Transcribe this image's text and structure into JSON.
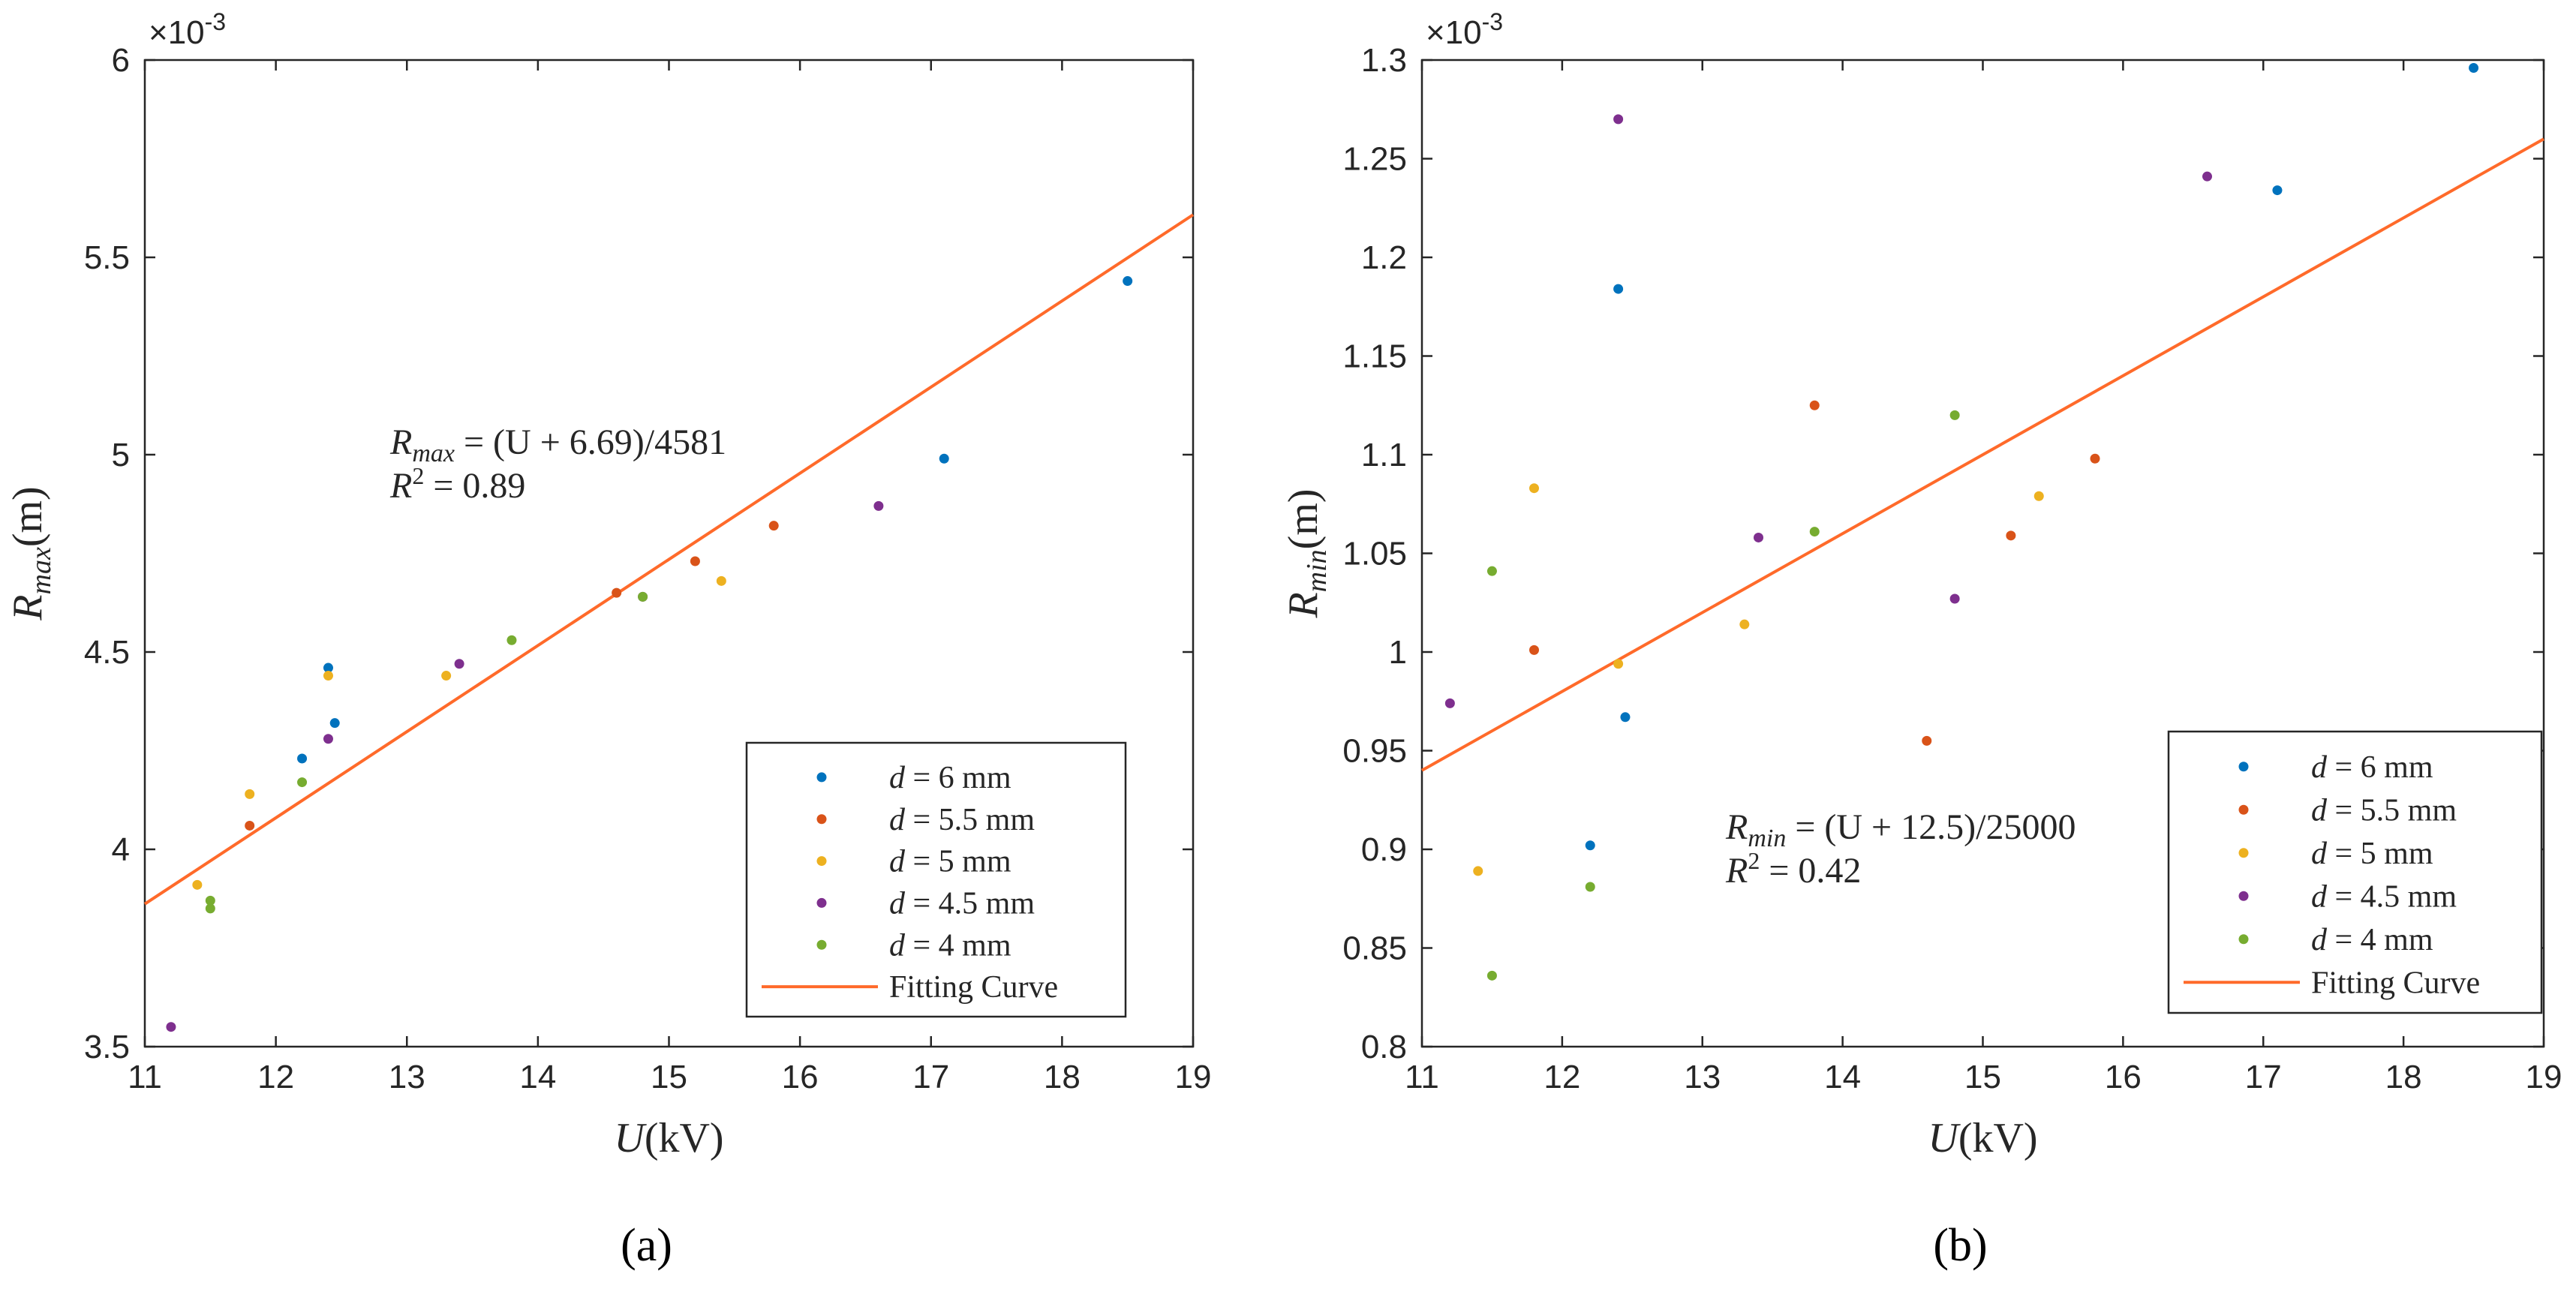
{
  "chart_data": [
    {
      "type": "scatter",
      "panel": "a",
      "caption": "(a)",
      "xlabel": "U(kV)",
      "xlabel_var": "U",
      "xlabel_unit": "(kV)",
      "ylabel": "R_max (m)",
      "ylabel_var": "R",
      "ylabel_sub": "max",
      "ylabel_unit": "(m)",
      "xlim": [
        11,
        19
      ],
      "ylim": [
        3.5,
        6
      ],
      "xticks": [
        11,
        12,
        13,
        14,
        15,
        16,
        17,
        18,
        19
      ],
      "xtick_labels": [
        "11",
        "12",
        "13",
        "14",
        "15",
        "16",
        "17",
        "18",
        "19"
      ],
      "yticks": [
        3.5,
        4,
        4.5,
        5,
        5.5,
        6
      ],
      "ytick_labels": [
        "3.5",
        "4",
        "4.5",
        "5",
        "5.5",
        "6"
      ],
      "exponent_label": "×10",
      "exponent_power": "-3",
      "equation_lines": [
        "R_max = (U + 6.69)/4581",
        "R^2 = 0.89"
      ],
      "equation_parts": {
        "var": "R",
        "sub": "max",
        "rhs": " = (U + 6.69)/4581",
        "r2_base": "R",
        "r2_sup": "2",
        "r2_rhs": " = 0.89"
      },
      "fit": {
        "slope": 0.21829,
        "intercept": 1.46037,
        "x": [
          11,
          19
        ]
      },
      "series": [
        {
          "name": "d = 6 mm",
          "label_var": "d",
          "label_rest": " = 6 mm",
          "color": "#0072BD",
          "x": [
            12.2,
            12.4,
            12.45,
            17.1,
            18.5
          ],
          "y": [
            4.23,
            4.46,
            4.32,
            4.99,
            5.44
          ]
        },
        {
          "name": "d = 5.5 mm",
          "label_var": "d",
          "label_rest": " = 5.5 mm",
          "color": "#D95319",
          "x": [
            11.8,
            14.6,
            15.2,
            15.8
          ],
          "y": [
            4.06,
            4.65,
            4.73,
            4.82
          ]
        },
        {
          "name": "d = 5 mm",
          "label_var": "d",
          "label_rest": " = 5 mm",
          "color": "#EDB120",
          "x": [
            11.4,
            11.8,
            12.4,
            13.3,
            15.4
          ],
          "y": [
            3.91,
            4.14,
            4.44,
            4.44,
            4.68
          ]
        },
        {
          "name": "d = 4.5 mm",
          "label_var": "d",
          "label_rest": " = 4.5 mm",
          "color": "#7E2F8E",
          "x": [
            11.2,
            12.4,
            13.4,
            14.8,
            16.6
          ],
          "y": [
            3.55,
            4.28,
            4.47,
            4.64,
            4.87
          ]
        },
        {
          "name": "d = 4 mm",
          "label_var": "d",
          "label_rest": " = 4 mm",
          "color": "#77AC30",
          "x": [
            11.5,
            11.5,
            12.2,
            13.8,
            14.8
          ],
          "y": [
            3.87,
            3.85,
            4.17,
            4.53,
            4.64
          ]
        }
      ],
      "fit_name": "Fitting Curve",
      "fit_color": "#FF6A2A"
    },
    {
      "type": "scatter",
      "panel": "b",
      "caption": "(b)",
      "xlabel": "U(kV)",
      "xlabel_var": "U",
      "xlabel_unit": "(kV)",
      "ylabel": "R_min (m)",
      "ylabel_var": "R",
      "ylabel_sub": "min",
      "ylabel_unit": "(m)",
      "xlim": [
        11,
        19
      ],
      "ylim": [
        0.8,
        1.3
      ],
      "xticks": [
        11,
        12,
        13,
        14,
        15,
        16,
        17,
        18,
        19
      ],
      "xtick_labels": [
        "11",
        "12",
        "13",
        "14",
        "15",
        "16",
        "17",
        "18",
        "19"
      ],
      "yticks": [
        0.8,
        0.85,
        0.9,
        0.95,
        1.0,
        1.05,
        1.1,
        1.15,
        1.2,
        1.25,
        1.3
      ],
      "ytick_labels": [
        "0.8",
        "0.85",
        "0.9",
        "0.95",
        "1",
        "1.05",
        "1.1",
        "1.15",
        "1.2",
        "1.25",
        "1.3"
      ],
      "exponent_label": "×10",
      "exponent_power": "-3",
      "equation_lines": [
        "R_min = (U + 12.5)/25000",
        "R^2 = 0.42"
      ],
      "equation_parts": {
        "var": "R",
        "sub": "min",
        "rhs": " = (U + 12.5)/25000",
        "r2_base": "R",
        "r2_sup": "2",
        "r2_rhs": " = 0.42"
      },
      "fit": {
        "slope": 0.04,
        "intercept": 0.5,
        "x": [
          11,
          19
        ]
      },
      "series": [
        {
          "name": "d = 6 mm",
          "label_var": "d",
          "label_rest": " = 6 mm",
          "color": "#0072BD",
          "x": [
            12.2,
            12.4,
            12.45,
            17.1,
            18.5
          ],
          "y": [
            0.902,
            1.184,
            0.967,
            1.234,
            1.296
          ]
        },
        {
          "name": "d = 5.5 mm",
          "label_var": "d",
          "label_rest": " = 5.5 mm",
          "color": "#D95319",
          "x": [
            11.8,
            13.8,
            14.6,
            15.2,
            15.8
          ],
          "y": [
            1.001,
            1.125,
            0.955,
            1.059,
            1.098
          ]
        },
        {
          "name": "d = 5 mm",
          "label_var": "d",
          "label_rest": " = 5 mm",
          "color": "#EDB120",
          "x": [
            11.4,
            11.8,
            12.4,
            13.3,
            15.4
          ],
          "y": [
            0.889,
            1.083,
            0.994,
            1.014,
            1.079
          ]
        },
        {
          "name": "d = 4.5 mm",
          "label_var": "d",
          "label_rest": " = 4.5 mm",
          "color": "#7E2F8E",
          "x": [
            11.2,
            12.4,
            13.4,
            14.8,
            16.6
          ],
          "y": [
            0.974,
            1.27,
            1.058,
            1.027,
            1.241
          ]
        },
        {
          "name": "d = 4 mm",
          "label_var": "d",
          "label_rest": " = 4 mm",
          "color": "#77AC30",
          "x": [
            11.5,
            11.5,
            12.2,
            13.8,
            14.8
          ],
          "y": [
            1.041,
            0.836,
            0.881,
            1.061,
            1.12
          ]
        }
      ],
      "fit_name": "Fitting Curve",
      "fit_color": "#FF6A2A"
    }
  ]
}
